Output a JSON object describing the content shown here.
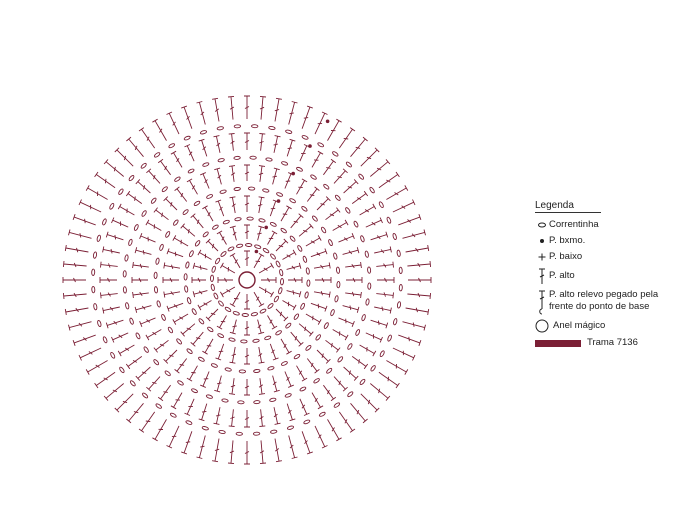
{
  "colors": {
    "stitch": "#7b1f35",
    "text": "#222222",
    "line": "#333333"
  },
  "stitch_key": {
    "center": "magic-ring",
    "rings": [
      {
        "stitch": "double-crochet",
        "count": 12
      },
      {
        "stitch": "chain",
        "count": 24
      },
      {
        "stitch": "double-crochet",
        "count": 24
      },
      {
        "stitch": "chain",
        "count": 32
      },
      {
        "stitch": "double-crochet",
        "count": 36
      },
      {
        "stitch": "chain",
        "count": 40
      },
      {
        "stitch": "double-crochet",
        "count": 48
      },
      {
        "stitch": "chain",
        "count": 48
      },
      {
        "stitch": "double-crochet",
        "count": 60
      },
      {
        "stitch": "chain",
        "count": 56
      },
      {
        "stitch": "double-crochet",
        "count": 72
      }
    ]
  },
  "legend": {
    "title": "Legenda",
    "items": [
      {
        "icon": "chain-icon",
        "label": "Correntinha"
      },
      {
        "icon": "slip-stitch-icon",
        "label": "P. bxmo."
      },
      {
        "icon": "single-crochet-icon",
        "label": "P. baixo"
      },
      {
        "icon": "double-crochet-icon",
        "label": "P. alto"
      },
      {
        "icon": "front-post-double-crochet-icon",
        "label": "P. alto relevo pegado pela frente do ponto de base"
      },
      {
        "icon": "magic-ring-icon",
        "label": "Anel mágico"
      },
      {
        "icon": "yarn-color-swatch-icon",
        "label": "Trama 7136"
      }
    ]
  }
}
